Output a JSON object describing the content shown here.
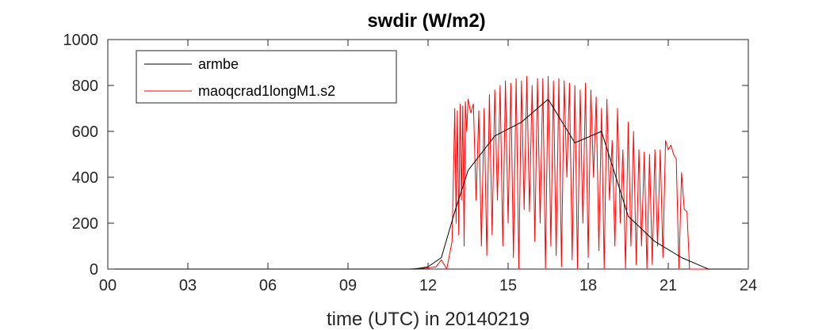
{
  "chart_data": {
    "type": "line",
    "title": "swdir  (W/m2)",
    "xlabel": "time (UTC) in 20140219",
    "ylabel": "",
    "xlim": [
      0,
      24
    ],
    "ylim": [
      0,
      1000
    ],
    "xticks": [
      0,
      3,
      6,
      9,
      12,
      15,
      18,
      21,
      24
    ],
    "xtick_labels": [
      "00",
      "03",
      "06",
      "09",
      "12",
      "15",
      "18",
      "21",
      "24"
    ],
    "yticks": [
      0,
      200,
      400,
      600,
      800,
      1000
    ],
    "ytick_labels": [
      "0",
      "200",
      "400",
      "600",
      "800",
      "1000"
    ],
    "grid": false,
    "legend_position": "top-left",
    "series": [
      {
        "name": "armbe",
        "color": "#000000",
        "x": [
          0,
          11.5,
          12.0,
          12.5,
          13.0,
          13.5,
          14.5,
          15.5,
          16.5,
          17.5,
          18.5,
          19.5,
          20.5,
          21.5,
          22.5,
          24
        ],
        "y": [
          0,
          0,
          10,
          50,
          250,
          430,
          580,
          640,
          740,
          550,
          600,
          230,
          120,
          50,
          0,
          0
        ]
      },
      {
        "name": "maoqcrad1longM1.s2",
        "color": "#ff0000",
        "x": [
          0,
          11.3,
          12.0,
          12.3,
          12.5,
          12.7,
          12.8,
          12.9,
          13.0,
          13.05,
          13.1,
          13.15,
          13.2,
          13.25,
          13.3,
          13.35,
          13.4,
          13.45,
          13.5,
          13.6,
          13.7,
          13.8,
          13.9,
          14.0,
          14.1,
          14.2,
          14.3,
          14.4,
          14.5,
          14.6,
          14.7,
          14.8,
          14.9,
          15.0,
          15.1,
          15.2,
          15.3,
          15.4,
          15.5,
          15.6,
          15.7,
          15.8,
          15.9,
          16.0,
          16.1,
          16.2,
          16.3,
          16.4,
          16.5,
          16.6,
          16.7,
          16.8,
          16.9,
          17.0,
          17.1,
          17.2,
          17.3,
          17.4,
          17.5,
          17.6,
          17.7,
          17.8,
          17.9,
          18.0,
          18.1,
          18.2,
          18.3,
          18.4,
          18.5,
          18.6,
          18.7,
          18.8,
          18.9,
          19.0,
          19.1,
          19.2,
          19.3,
          19.4,
          19.5,
          19.6,
          19.7,
          19.8,
          19.9,
          20.0,
          20.1,
          20.2,
          20.3,
          20.4,
          20.5,
          20.6,
          20.7,
          20.8,
          20.9,
          21.0,
          21.1,
          21.2,
          21.3,
          21.4,
          21.5,
          21.6,
          21.7,
          21.8,
          21.9,
          22.0,
          22.2,
          22.5,
          24
        ],
        "y": [
          0,
          0,
          5,
          10,
          40,
          0,
          60,
          120,
          700,
          200,
          690,
          150,
          720,
          300,
          710,
          100,
          730,
          600,
          740,
          680,
          720,
          300,
          690,
          100,
          700,
          60,
          760,
          150,
          780,
          300,
          800,
          100,
          820,
          200,
          810,
          50,
          830,
          0,
          820,
          260,
          840,
          250,
          800,
          120,
          830,
          200,
          830,
          0,
          840,
          100,
          820,
          60,
          830,
          10,
          820,
          400,
          810,
          40,
          800,
          0,
          780,
          200,
          810,
          50,
          780,
          400,
          750,
          80,
          700,
          0,
          740,
          300,
          560,
          100,
          700,
          200,
          520,
          0,
          640,
          100,
          600,
          20,
          520,
          100,
          510,
          0,
          500,
          20,
          520,
          100,
          520,
          50,
          560,
          520,
          540,
          500,
          480,
          0,
          420,
          260,
          250,
          0,
          0,
          0,
          0,
          0,
          0
        ]
      }
    ]
  }
}
